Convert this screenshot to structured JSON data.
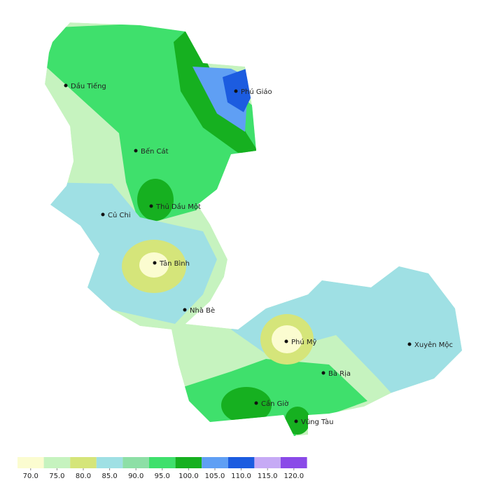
{
  "places": [
    "Dầu Tiếng",
    "Phú Giáo",
    "Bến Cát",
    "Thủ Dầu Một",
    "Củ Chi",
    "Tân Bình",
    "Nhà Bè",
    "Phú Mỹ",
    "Xuyên Mộc",
    "Bà Rịa",
    "Cần Giờ",
    "Vũng Tàu"
  ],
  "legend": {
    "items": [
      {
        "value": 70,
        "label": "70.0",
        "color": "#fbfcd0"
      },
      {
        "value": 75,
        "label": "75.0",
        "color": "#c6f3bf"
      },
      {
        "value": 80,
        "label": "80.0",
        "color": "#d5e57a"
      },
      {
        "value": 85,
        "label": "85.0",
        "color": "#9fe0e4"
      },
      {
        "value": 90,
        "label": "90.0",
        "color": "#8ddfa6"
      },
      {
        "value": 95,
        "label": "95.0",
        "color": "#3fe06c"
      },
      {
        "value": 100,
        "label": "100.0",
        "color": "#16b020"
      },
      {
        "value": 105,
        "label": "105.0",
        "color": "#5f9ff4"
      },
      {
        "value": 110,
        "label": "110.0",
        "color": "#1c5ce0"
      },
      {
        "value": 115,
        "label": "115.0",
        "color": "#c6aaf5"
      },
      {
        "value": 120,
        "label": "120.0",
        "color": "#8a4ae8"
      }
    ]
  }
}
